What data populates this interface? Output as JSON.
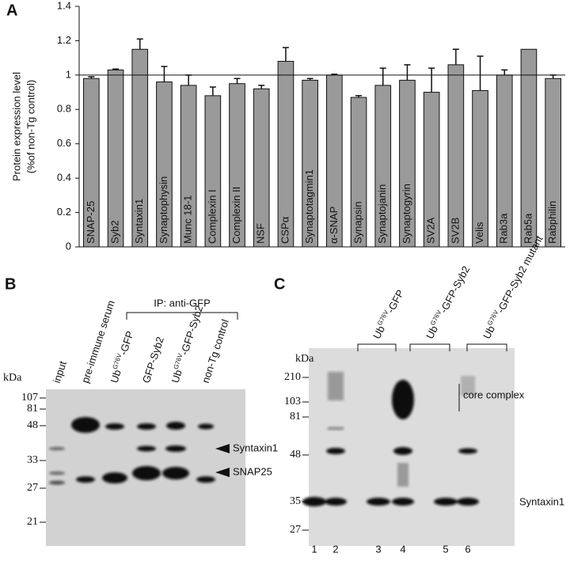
{
  "chart_data": {
    "type": "bar",
    "panel_label": "A",
    "ylabel": [
      "Protein expression level",
      "(%of non-Tg control)"
    ],
    "categories": [
      "SNAP-25",
      "Syb2",
      "Syntaxin1",
      "Synaptophysin",
      "Munc 18-1",
      "Complexin I",
      "Complexin II",
      "NSF",
      "CSPα",
      "Synaptotagmin1",
      "α-SNAP",
      "Synapsin",
      "Synaptojanin",
      "Synaptogyrin",
      "SV2A",
      "SV2B",
      "Velis",
      "Rab3a",
      "Rab5a",
      "Rabphilin"
    ],
    "values": [
      0.98,
      1.03,
      1.15,
      0.96,
      0.94,
      0.88,
      0.95,
      0.92,
      1.08,
      0.97,
      1.0,
      0.87,
      0.94,
      0.97,
      0.9,
      1.06,
      0.91,
      1.0,
      1.15,
      0.98
    ],
    "errors": [
      0.01,
      0.005,
      0.06,
      0.09,
      0.06,
      0.05,
      0.03,
      0.02,
      0.08,
      0.01,
      0.005,
      0.01,
      0.1,
      0.09,
      0.14,
      0.09,
      0.2,
      0.03,
      null,
      0.02
    ],
    "color": "#9a9a9a",
    "hline": 1,
    "ylim": [
      0,
      1.4
    ],
    "yticks": [
      0,
      0.2,
      0.4,
      0.6,
      0.8,
      1,
      1.2,
      1.4
    ]
  },
  "panel_b": {
    "label": "B",
    "ip_label": "IP: anti-GFP",
    "kda": "kDa",
    "lanes": [
      "input",
      "pre-immune serum",
      {
        "base": "Ub",
        "sup": "G76V",
        "rest": "-GFP"
      },
      "GFP-Syb2",
      {
        "base": "Ub",
        "sup": "G76V",
        "rest": "-GFP-Syb2"
      },
      "non-Tg control"
    ],
    "markers": [
      107,
      81,
      48,
      33,
      27,
      21
    ],
    "arrows": [
      "Syntaxin1",
      "SNAP25"
    ]
  },
  "panel_c": {
    "label": "C",
    "kda": "kDa",
    "lanes": [
      {
        "base": "Ub",
        "sup": "G76V",
        "rest": "-GFP"
      },
      {
        "base": "Ub",
        "sup": "G76V",
        "rest": "-GFP-Syb2"
      },
      {
        "base": "Ub",
        "sup": "G76V",
        "rest": "-GFP-Syb2 mutant"
      }
    ],
    "markers": [
      210,
      103,
      81,
      48,
      35,
      27
    ],
    "core_label": "core complex",
    "band_label": "Syntaxin1",
    "lane_numbers": [
      1,
      2,
      3,
      4,
      5,
      6
    ]
  }
}
